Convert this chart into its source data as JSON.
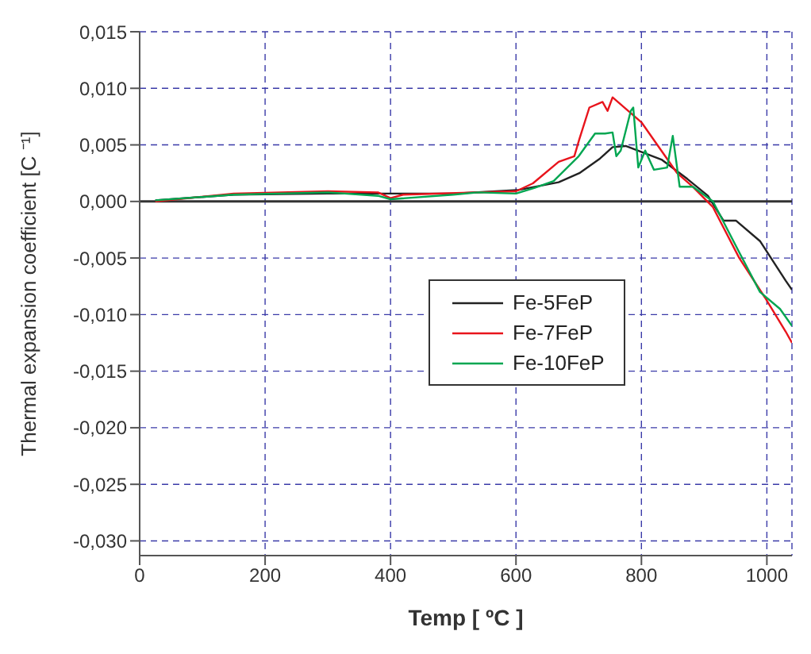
{
  "chart_data": {
    "type": "line",
    "xlabel": "Temp [ ºC ]",
    "ylabel": "Thermal expansion coefficient [C ⁻¹]",
    "xlim": [
      0,
      1040
    ],
    "xticks": [
      0,
      200,
      400,
      600,
      800,
      1000
    ],
    "ylim": [
      -0.0313,
      0.015
    ],
    "yticks": [
      {
        "value": 0.015,
        "label": "0,015"
      },
      {
        "value": 0.01,
        "label": "0,010"
      },
      {
        "value": 0.005,
        "label": "0,005"
      },
      {
        "value": 0,
        "label": "0,000"
      },
      {
        "value": -0.005,
        "label": "-0,005"
      },
      {
        "value": -0.01,
        "label": "-0,010"
      },
      {
        "value": -0.015,
        "label": "-0,015"
      },
      {
        "value": -0.02,
        "label": "-0,020"
      },
      {
        "value": -0.025,
        "label": "-0,025"
      },
      {
        "value": -0.03,
        "label": "-0,030"
      }
    ],
    "grid": true,
    "legend": "right",
    "marker": "none",
    "line_style": "solid",
    "ref_lines": [
      {
        "axis": "y",
        "value": 0,
        "color": "#333333"
      }
    ],
    "series": [
      {
        "name": "Fe-5FeP",
        "color": "#222222",
        "x": [
          25,
          150,
          300,
          500,
          602,
          668,
          701,
          734,
          754,
          775,
          832,
          873,
          906,
          931,
          951,
          989,
          1030,
          1040
        ],
        "values": [
          0.0001,
          0.0006,
          0.0007,
          0.0007,
          0.001,
          0.0017,
          0.0025,
          0.0038,
          0.0048,
          0.0049,
          0.0037,
          0.002,
          0.0005,
          -0.0017,
          -0.0017,
          -0.0035,
          -0.007,
          -0.0078
        ]
      },
      {
        "name": "Fe-7FeP",
        "color": "#e8141c",
        "x": [
          25,
          150,
          300,
          380,
          400,
          420,
          600,
          627,
          668,
          693,
          701,
          717,
          738,
          746,
          754,
          800,
          857,
          882,
          914,
          956,
          997,
          1030,
          1040
        ],
        "values": [
          0,
          0.0007,
          0.0009,
          0.0008,
          0.0003,
          0.0006,
          0.0009,
          0.0016,
          0.0035,
          0.004,
          0.0055,
          0.0083,
          0.0088,
          0.008,
          0.0092,
          0.007,
          0.0025,
          0.0013,
          -0.0005,
          -0.005,
          -0.0085,
          -0.0115,
          -0.0125
        ]
      },
      {
        "name": "Fe-10FeP",
        "color": "#00a651",
        "x": [
          25,
          150,
          300,
          380,
          400,
          500,
          540,
          600,
          630,
          660,
          700,
          726,
          742,
          754,
          760,
          767,
          783,
          787,
          795,
          806,
          820,
          841,
          850,
          861,
          882,
          914,
          956,
          989,
          1021,
          1040
        ],
        "values": [
          0.0001,
          0.0006,
          0.0008,
          0.0005,
          0.0002,
          0.0006,
          0.0008,
          0.0007,
          0.0012,
          0.0018,
          0.004,
          0.006,
          0.006,
          0.0061,
          0.004,
          0.0045,
          0.008,
          0.0083,
          0.003,
          0.0045,
          0.0028,
          0.003,
          0.0058,
          0.0013,
          0.0013,
          0,
          -0.0045,
          -0.008,
          -0.0095,
          -0.011
        ]
      }
    ]
  }
}
